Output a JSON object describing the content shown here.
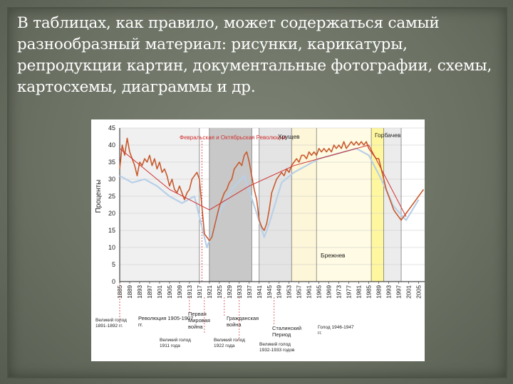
{
  "slide": {
    "text": "В таблицах, как правило, может содержаться самый разнообразный материал: рисунки, карикатуры, репродукции картин, документальные фотографии, схемы, картосхемы, диаграммы и др."
  },
  "chart_data": {
    "type": "line",
    "ylabel": "Проценты",
    "ylim": [
      0,
      45
    ],
    "yticks": [
      0,
      5,
      10,
      15,
      20,
      25,
      30,
      35,
      40,
      45
    ],
    "xlim": [
      1885,
      2008
    ],
    "xticks": [
      "1885",
      "1889",
      "1893",
      "1897",
      "1901",
      "1905",
      "1909",
      "1913",
      "1917",
      "1921",
      "1925",
      "1929",
      "1933",
      "1937",
      "1941",
      "1945",
      "1949",
      "1953",
      "1957",
      "1961",
      "1965",
      "1969",
      "1973",
      "1977",
      "1981",
      "1985",
      "1989",
      "1993",
      "1997",
      "2001",
      "2005"
    ],
    "series": [
      {
        "color": "#c85a2e",
        "points": [
          [
            1885,
            33
          ],
          [
            1886,
            40
          ],
          [
            1887,
            37
          ],
          [
            1888,
            42
          ],
          [
            1889,
            38
          ],
          [
            1890,
            36
          ],
          [
            1891,
            34
          ],
          [
            1892,
            31
          ],
          [
            1893,
            35
          ],
          [
            1894,
            34
          ],
          [
            1895,
            36
          ],
          [
            1896,
            35
          ],
          [
            1897,
            37
          ],
          [
            1898,
            34
          ],
          [
            1899,
            36
          ],
          [
            1900,
            33
          ],
          [
            1901,
            35
          ],
          [
            1902,
            32
          ],
          [
            1903,
            33
          ],
          [
            1904,
            31
          ],
          [
            1905,
            28
          ],
          [
            1906,
            30
          ],
          [
            1907,
            27
          ],
          [
            1908,
            26
          ],
          [
            1909,
            28
          ],
          [
            1910,
            26
          ],
          [
            1911,
            24
          ],
          [
            1912,
            26
          ],
          [
            1913,
            27
          ],
          [
            1914,
            30
          ],
          [
            1915,
            31
          ],
          [
            1916,
            32
          ],
          [
            1917,
            30
          ],
          [
            1918,
            22
          ],
          [
            1919,
            14
          ],
          [
            1920,
            13
          ],
          [
            1921,
            12
          ],
          [
            1922,
            13
          ],
          [
            1923,
            16
          ],
          [
            1924,
            19
          ],
          [
            1925,
            22
          ],
          [
            1926,
            24
          ],
          [
            1927,
            26
          ],
          [
            1928,
            27
          ],
          [
            1929,
            29
          ],
          [
            1930,
            30
          ],
          [
            1931,
            33
          ],
          [
            1932,
            34
          ],
          [
            1933,
            35
          ],
          [
            1934,
            34
          ],
          [
            1935,
            37
          ],
          [
            1936,
            38
          ],
          [
            1937,
            35
          ],
          [
            1938,
            31
          ],
          [
            1939,
            27
          ],
          [
            1940,
            24
          ],
          [
            1941,
            18
          ],
          [
            1942,
            16
          ],
          [
            1943,
            15
          ],
          [
            1944,
            17
          ],
          [
            1945,
            21
          ],
          [
            1946,
            26
          ],
          [
            1947,
            28
          ],
          [
            1948,
            30
          ],
          [
            1949,
            31
          ],
          [
            1950,
            32
          ],
          [
            1951,
            31
          ],
          [
            1952,
            33
          ],
          [
            1953,
            32
          ],
          [
            1954,
            34
          ],
          [
            1955,
            35
          ],
          [
            1956,
            36
          ],
          [
            1957,
            35
          ],
          [
            1958,
            37
          ],
          [
            1959,
            37
          ],
          [
            1960,
            36
          ],
          [
            1961,
            38
          ],
          [
            1962,
            37
          ],
          [
            1963,
            38
          ],
          [
            1964,
            37
          ],
          [
            1965,
            39
          ],
          [
            1966,
            38
          ],
          [
            1967,
            39
          ],
          [
            1968,
            38
          ],
          [
            1969,
            39
          ],
          [
            1970,
            38
          ],
          [
            1971,
            40
          ],
          [
            1972,
            39
          ],
          [
            1973,
            40
          ],
          [
            1974,
            39
          ],
          [
            1975,
            41
          ],
          [
            1976,
            39
          ],
          [
            1977,
            40
          ],
          [
            1978,
            41
          ],
          [
            1979,
            40
          ],
          [
            1980,
            41
          ],
          [
            1981,
            40
          ],
          [
            1982,
            41
          ],
          [
            1983,
            40
          ],
          [
            1984,
            41
          ],
          [
            1985,
            39
          ],
          [
            1986,
            38
          ],
          [
            1987,
            37
          ],
          [
            1988,
            36
          ],
          [
            1989,
            36
          ],
          [
            1990,
            33
          ],
          [
            1991,
            30
          ],
          [
            1992,
            27
          ],
          [
            1993,
            25
          ],
          [
            1994,
            23
          ],
          [
            1995,
            21
          ],
          [
            1996,
            20
          ],
          [
            1997,
            19
          ],
          [
            1998,
            18
          ],
          [
            1999,
            19
          ],
          [
            2000,
            20
          ],
          [
            2001,
            21
          ],
          [
            2002,
            22
          ],
          [
            2003,
            23
          ],
          [
            2004,
            24
          ],
          [
            2005,
            25
          ],
          [
            2006,
            26
          ],
          [
            2007,
            27
          ]
        ]
      },
      {
        "color": "#b8d0e8",
        "points": [
          [
            1885,
            31
          ],
          [
            1890,
            29
          ],
          [
            1895,
            30
          ],
          [
            1900,
            28
          ],
          [
            1905,
            25
          ],
          [
            1910,
            23
          ],
          [
            1915,
            25
          ],
          [
            1920,
            10
          ],
          [
            1925,
            20
          ],
          [
            1930,
            27
          ],
          [
            1935,
            31
          ],
          [
            1940,
            20
          ],
          [
            1943,
            13
          ],
          [
            1945,
            17
          ],
          [
            1950,
            29
          ],
          [
            1955,
            32
          ],
          [
            1960,
            34
          ],
          [
            1965,
            36
          ],
          [
            1970,
            37
          ],
          [
            1975,
            38
          ],
          [
            1980,
            39
          ],
          [
            1985,
            37
          ],
          [
            1990,
            30
          ],
          [
            1995,
            22
          ],
          [
            2000,
            18
          ],
          [
            2005,
            24
          ]
        ]
      },
      {
        "color": "#d03030",
        "points": [
          [
            1885,
            39
          ],
          [
            1905,
            27
          ],
          [
            1921,
            21
          ],
          [
            1937,
            28
          ],
          [
            1955,
            34
          ],
          [
            1970,
            37
          ],
          [
            1985,
            40
          ],
          [
            2000,
            19
          ]
        ]
      }
    ],
    "shaded_periods": [
      {
        "from": 1885,
        "to": 1917,
        "fill": "#f0f0f0"
      },
      {
        "from": 1921,
        "to": 1938,
        "fill": "#c8c8c8"
      },
      {
        "from": 1941,
        "to": 1954,
        "fill": "#e4e4e4"
      },
      {
        "from": 1954,
        "to": 1964,
        "fill": "#fdf6d8"
      },
      {
        "from": 1964,
        "to": 1986,
        "fill": "#fffbe4"
      },
      {
        "from": 1986,
        "to": 1991,
        "fill": "#fff7a0"
      },
      {
        "from": 1991,
        "to": 1998,
        "fill": "#ececec"
      }
    ],
    "annotations": {
      "revolutions": "Февральская и Октябрьская Революции",
      "khrushchev": "Хрущев",
      "gorbachev": "Горбачев",
      "brezhnev": "Брежнев",
      "famine_1891": "Великий голод 1891-1892 гг.",
      "revolution_1905": "Революция 1905-1907 гг.",
      "ww1": "Первая Мировая война",
      "famine_1911": "Великий голод 1911 года",
      "famine_1922": "Великий голод 1922 года",
      "civil_war": "Гражданская война",
      "famine_1932": "Великий голод 1932-1933 годов",
      "stalin": "Сталинский Период",
      "famine_1946": "Голод 1946-1947 гг."
    }
  }
}
